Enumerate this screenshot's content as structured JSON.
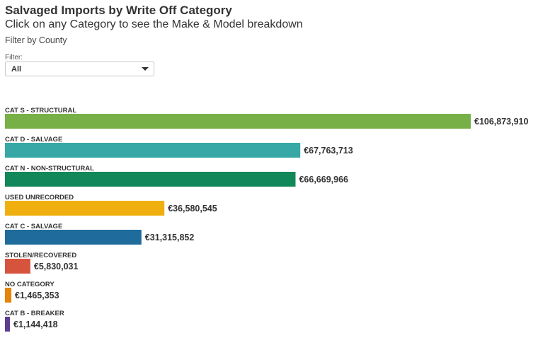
{
  "header": {
    "title": "Salvaged Imports by Write Off Category",
    "subtitle": "Click on any Category to see the Make & Model breakdown",
    "filter_by": "Filter by County"
  },
  "filter": {
    "label": "Filter:",
    "selected": "All"
  },
  "chart_data": {
    "type": "bar",
    "orientation": "horizontal",
    "categories": [
      "CAT S - STRUCTURAL",
      "CAT D - SALVAGE",
      "CAT N - NON-STRUCTURAL",
      "USED UNRECORDED",
      "CAT C - SALVAGE",
      "STOLEN/RECOVERED",
      "NO CATEGORY",
      "CAT B - BREAKER"
    ],
    "values": [
      106873910,
      67763713,
      66669966,
      36580545,
      31315852,
      5830031,
      1465353,
      1144418
    ],
    "value_labels": [
      "€106,873,910",
      "€67,763,713",
      "€66,669,966",
      "€36,580,545",
      "€31,315,852",
      "€5,830,031",
      "€1,465,353",
      "€1,144,418"
    ],
    "colors": [
      "#76b046",
      "#37a8a6",
      "#12875a",
      "#efb00f",
      "#1f6b9c",
      "#d6533e",
      "#e5830a",
      "#5e3d8e"
    ],
    "xlim": [
      0,
      106873910
    ],
    "grid": false
  }
}
